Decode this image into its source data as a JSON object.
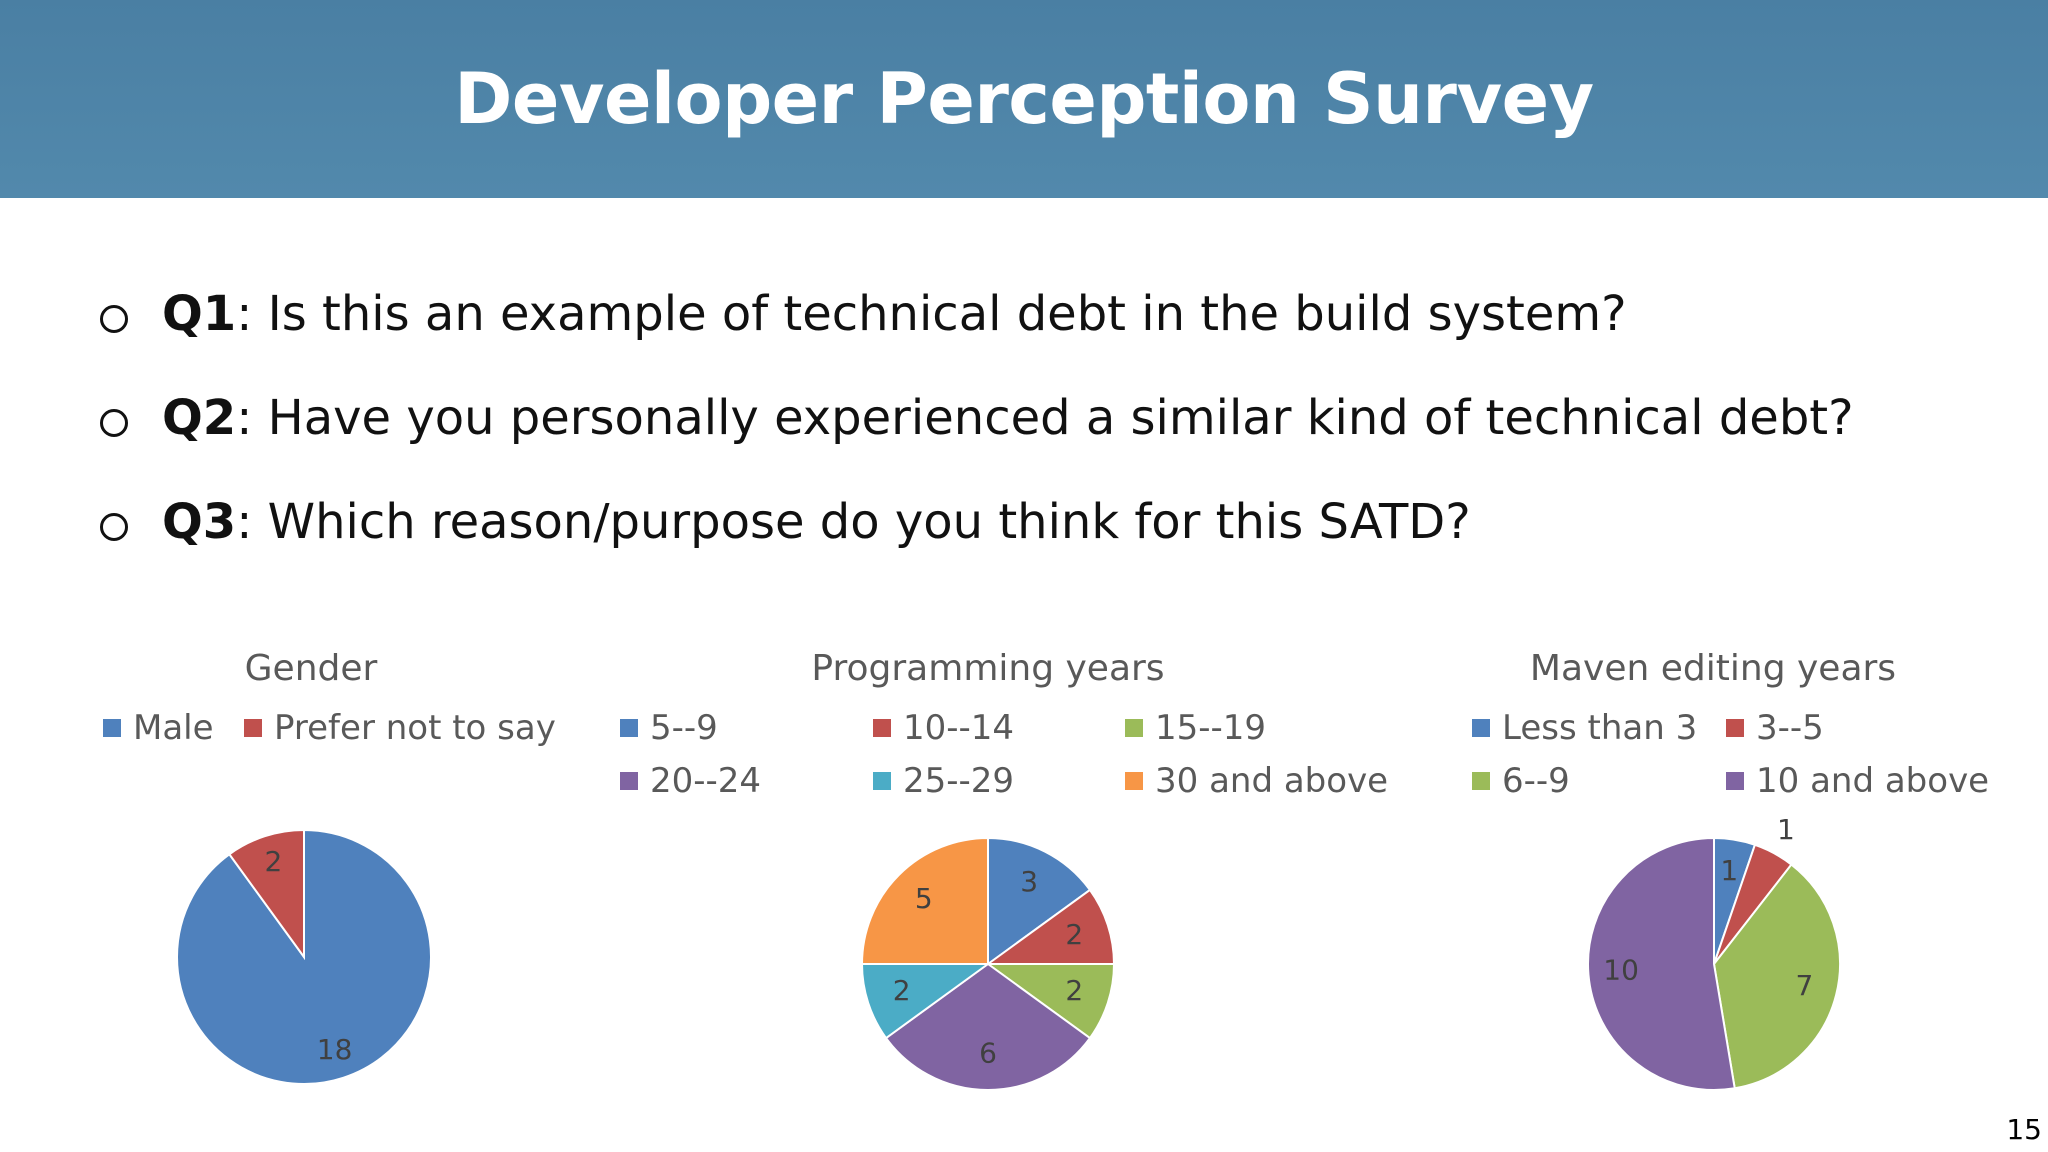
{
  "slide": {
    "title": "Developer Perception Survey",
    "page_number": "15"
  },
  "questions": [
    {
      "label": "Q1",
      "text": ": Is this an example of technical debt in the build system?"
    },
    {
      "label": "Q2",
      "text": ": Have you personally experienced a similar kind of technical debt?"
    },
    {
      "label": "Q3",
      "text": ": Which reason/purpose do you think for this SATD?"
    }
  ],
  "colors": {
    "blue": "#4f81bd",
    "red": "#c0504d",
    "green": "#9bbb59",
    "purple": "#8064a2",
    "teal": "#4bacc6",
    "orange": "#f79646",
    "header": "#5289ac"
  },
  "chart_data": [
    {
      "type": "pie",
      "title": "Gender",
      "legend_position": "top",
      "categories": [
        "Male",
        "Prefer not to say"
      ],
      "values": [
        18,
        2
      ],
      "colors": [
        "#4f81bd",
        "#c0504d"
      ],
      "data_labels": [
        "18",
        "2"
      ]
    },
    {
      "type": "pie",
      "title": "Programming years",
      "legend_position": "top",
      "categories": [
        "5--9",
        "10--14",
        "15--19",
        "20--24",
        "25--29",
        "30 and above"
      ],
      "values": [
        3,
        2,
        2,
        6,
        2,
        5
      ],
      "colors": [
        "#4f81bd",
        "#c0504d",
        "#9bbb59",
        "#8064a2",
        "#4bacc6",
        "#f79646"
      ],
      "data_labels": [
        "3",
        "2",
        "2",
        "6",
        "2",
        "5"
      ]
    },
    {
      "type": "pie",
      "title": "Maven editing years",
      "legend_position": "top",
      "categories": [
        "Less than 3",
        "3--5",
        "6--9",
        "10 and above"
      ],
      "values": [
        1,
        1,
        7,
        10
      ],
      "colors": [
        "#4f81bd",
        "#c0504d",
        "#9bbb59",
        "#8064a2"
      ],
      "data_labels": [
        "1",
        "1",
        "7",
        "10"
      ]
    }
  ]
}
